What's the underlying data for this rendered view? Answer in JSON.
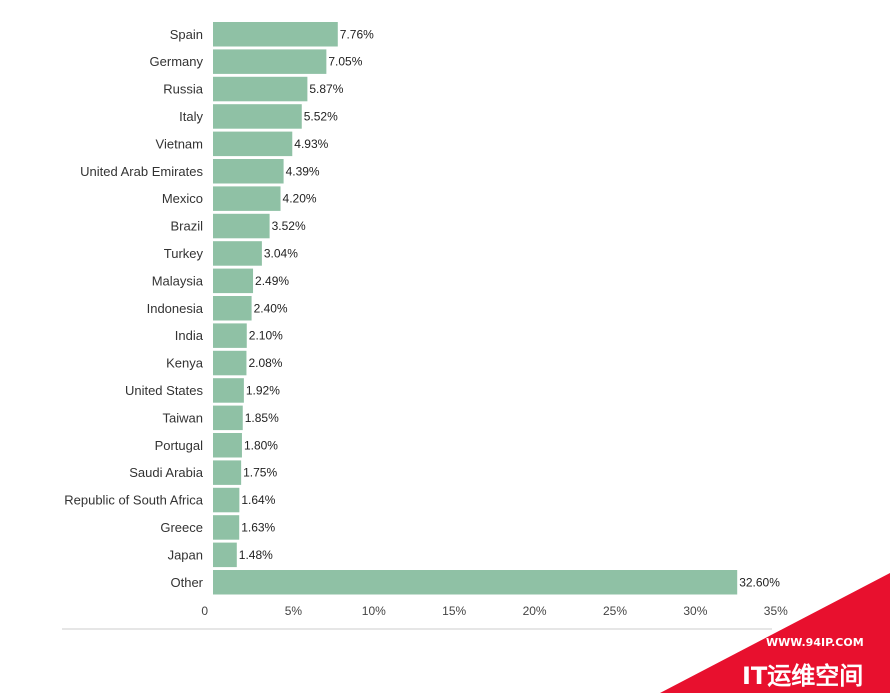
{
  "chart_data": {
    "type": "bar",
    "orientation": "horizontal",
    "categories": [
      "Spain",
      "Germany",
      "Russia",
      "Italy",
      "Vietnam",
      "United Arab Emirates",
      "Mexico",
      "Brazil",
      "Turkey",
      "Malaysia",
      "Indonesia",
      "India",
      "Kenya",
      "United States",
      "Taiwan",
      "Portugal",
      "Saudi Arabia",
      "Republic of South Africa",
      "Greece",
      "Japan",
      "Other"
    ],
    "values": [
      7.76,
      7.05,
      5.87,
      5.52,
      4.93,
      4.39,
      4.2,
      3.52,
      3.04,
      2.49,
      2.4,
      2.1,
      2.08,
      1.92,
      1.85,
      1.8,
      1.75,
      1.64,
      1.63,
      1.48,
      32.6
    ],
    "value_labels": [
      "7.76%",
      "7.05%",
      "5.87%",
      "5.52%",
      "4.93%",
      "4.39%",
      "4.20%",
      "3.52%",
      "3.04%",
      "2.49%",
      "2.40%",
      "2.10%",
      "2.08%",
      "1.92%",
      "1.85%",
      "1.80%",
      "1.75%",
      "1.64%",
      "1.63%",
      "1.48%",
      "32.60%"
    ],
    "xticks": [
      "0",
      "5%",
      "10%",
      "15%",
      "20%",
      "25%",
      "30%",
      "35%"
    ],
    "xtick_values": [
      0,
      5,
      10,
      15,
      20,
      25,
      30,
      35
    ],
    "xlim": [
      0,
      35
    ],
    "grid": false,
    "bar_color": "#8fc1a5"
  },
  "watermark": {
    "url": "WWW.94IP.COM",
    "name": "IT运维空间",
    "color": "#e8102e"
  }
}
